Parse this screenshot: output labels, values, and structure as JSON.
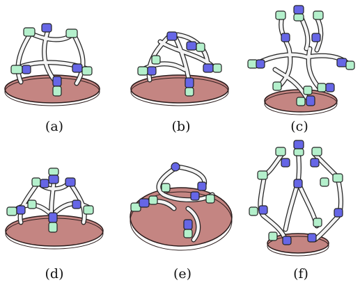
{
  "figure": {
    "panels": [
      {
        "label": "(a)"
      },
      {
        "label": "(b)"
      },
      {
        "label": "(c)"
      },
      {
        "label": "(d)"
      },
      {
        "label": "(e)"
      },
      {
        "label": "(f)"
      }
    ],
    "colors": {
      "base_fill": "#c48582",
      "base_stroke": "#2b1c1c",
      "link_blue": "#6666e6",
      "link_green": "#b4f0cc",
      "rail": "#f4f4f4",
      "outline": "#222222"
    }
  }
}
